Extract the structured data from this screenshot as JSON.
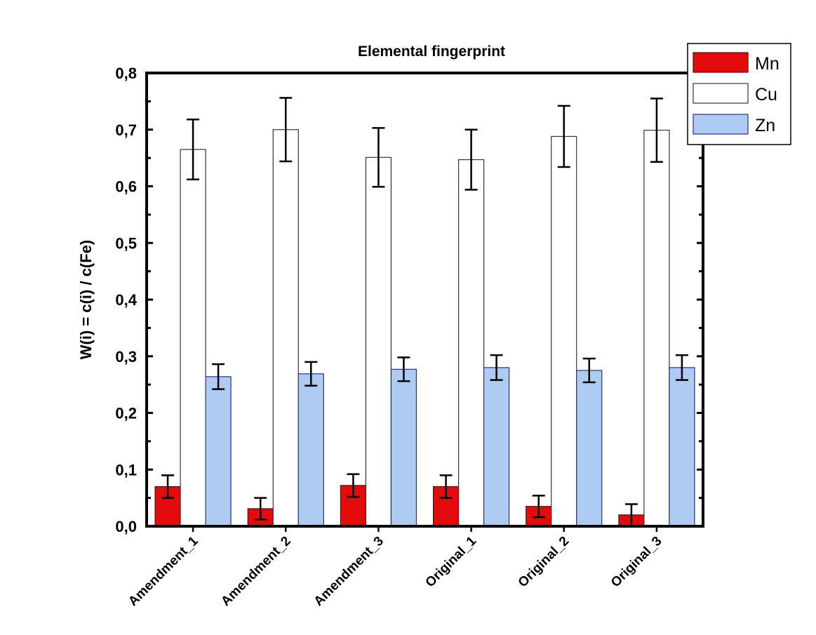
{
  "chart_data": {
    "type": "bar",
    "title": "Elemental fingerprint",
    "xlabel": "",
    "ylabel": "W(i) = c(i) / c(Fe)",
    "ylim": [
      0,
      0.8
    ],
    "yticks": [
      "0,0",
      "0,1",
      "0,2",
      "0,3",
      "0,4",
      "0,5",
      "0,6",
      "0,7",
      "0,8"
    ],
    "categories": [
      "Amendment_1",
      "Amendment_2",
      "Amendment_3",
      "Original_1",
      "Original_2",
      "Original_3"
    ],
    "series": [
      {
        "name": "Mn",
        "color": "#e30b0b",
        "stroke": "#6a0000",
        "values": [
          0.07,
          0.031,
          0.072,
          0.07,
          0.035,
          0.02
        ],
        "errors": [
          0.02,
          0.019,
          0.02,
          0.02,
          0.019,
          0.019
        ]
      },
      {
        "name": "Cu",
        "color": "#ffffff",
        "stroke": "#333333",
        "values": [
          0.665,
          0.7,
          0.651,
          0.647,
          0.688,
          0.699
        ],
        "errors": [
          0.053,
          0.056,
          0.052,
          0.053,
          0.054,
          0.056
        ]
      },
      {
        "name": "Zn",
        "color": "#aecbf2",
        "stroke": "#2d2d8f",
        "values": [
          0.264,
          0.269,
          0.277,
          0.28,
          0.275,
          0.28
        ],
        "errors": [
          0.022,
          0.021,
          0.021,
          0.022,
          0.021,
          0.022
        ]
      }
    ],
    "legend_position": "top-right",
    "grid": false
  }
}
